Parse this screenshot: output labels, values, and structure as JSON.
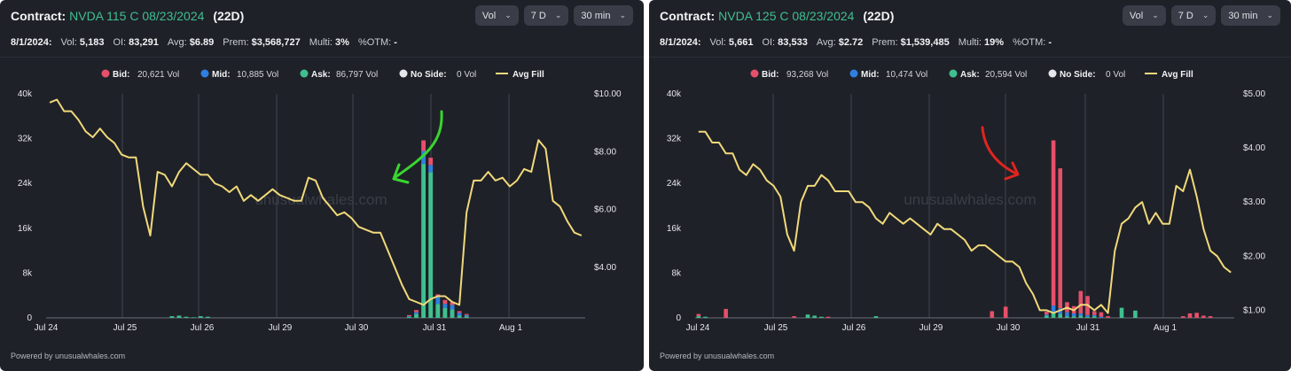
{
  "footer_text": "Powered by unusualwhales.com",
  "watermark": "unusualwhales.com",
  "colors": {
    "bid": "#e5506a",
    "mid": "#2f7fe0",
    "ask": "#3fbf8f",
    "no_side": "#e6e7ea",
    "avg_fill": "#f0d97a",
    "bg": "#1f2128",
    "grid": "#2c2f38"
  },
  "panels": [
    {
      "title_prefix": "Contract:",
      "contract": "NVDA 115 C 08/23/2024",
      "days": "(22D)",
      "controls": [
        {
          "label": "Vol",
          "icon": "chevron-down-icon"
        },
        {
          "label": "7 D",
          "icon": "chevron-down-icon"
        },
        {
          "label": "30 min",
          "icon": "chevron-down-icon"
        }
      ],
      "stats": {
        "date": "8/1/2024:",
        "vol_label": "Vol:",
        "vol": "5,183",
        "oi_label": "OI:",
        "oi": "83,291",
        "avg_label": "Avg:",
        "avg": "$6.89",
        "prem_label": "Prem:",
        "prem": "$3,568,727",
        "multi_label": "Multi:",
        "multi": "3%",
        "otm_label": "%OTM:",
        "otm": "-"
      },
      "annotation": {
        "type": "arrow",
        "color": "#39d62f"
      },
      "chart_data": {
        "type": "bar+line",
        "legend": [
          {
            "key": "bid",
            "label": "Bid:",
            "value": "20,621 Vol"
          },
          {
            "key": "mid",
            "label": "Mid:",
            "value": "10,885 Vol"
          },
          {
            "key": "ask",
            "label": "Ask:",
            "value": "86,797 Vol"
          },
          {
            "key": "no_side",
            "label": "No Side:",
            "value": "0 Vol"
          },
          {
            "key": "avg_fill",
            "label": "Avg Fill",
            "value": ""
          }
        ],
        "x_ticks": [
          "Jul 24",
          "Jul 25",
          "Jul 26",
          "Jul 29",
          "Jul 30",
          "Jul 31",
          "Aug 1"
        ],
        "y_left_ticks": [
          "0",
          "8k",
          "16k",
          "24k",
          "32k",
          "40k"
        ],
        "y_left_lim": [
          0,
          40000
        ],
        "y_right_ticks": [
          "$4.00",
          "$6.00",
          "$8.00",
          "$10.00"
        ],
        "y_right_lim": [
          2.25,
          10.0
        ],
        "avg_fill": [
          9.7,
          9.8,
          9.4,
          9.4,
          9.1,
          8.7,
          8.5,
          8.8,
          8.5,
          8.3,
          7.9,
          7.8,
          7.8,
          6.1,
          5.1,
          7.3,
          7.2,
          6.8,
          7.3,
          7.6,
          7.4,
          7.2,
          7.2,
          6.9,
          6.8,
          6.6,
          6.8,
          6.3,
          6.5,
          6.3,
          6.5,
          6.7,
          6.5,
          6.4,
          6.3,
          6.3,
          7.1,
          7.0,
          6.4,
          6.1,
          5.8,
          5.9,
          5.7,
          5.4,
          5.3,
          5.2,
          5.2,
          4.6,
          4.0,
          3.4,
          2.9,
          2.8,
          2.7,
          2.9,
          3.0,
          3.0,
          2.8,
          2.7,
          5.9,
          7.0,
          7.0,
          7.3,
          7.0,
          7.1,
          6.8,
          7.0,
          7.4,
          7.3,
          8.4,
          8.1,
          6.3,
          6.1,
          5.6,
          5.2,
          5.1
        ],
        "bars": {
          "ask": [
            0,
            0,
            0,
            0,
            0,
            0,
            0,
            0,
            0,
            0,
            0,
            0,
            0,
            0,
            0,
            0,
            0,
            300,
            400,
            200,
            100,
            300,
            200,
            0,
            0,
            0,
            0,
            0,
            0,
            0,
            0,
            0,
            0,
            0,
            0,
            0,
            0,
            0,
            0,
            0,
            0,
            0,
            0,
            0,
            0,
            0,
            0,
            0,
            0,
            0,
            200,
            700,
            27500,
            26000,
            2500,
            1800,
            1500,
            400,
            300,
            0,
            0,
            0,
            0,
            0,
            0,
            0,
            0,
            0,
            0,
            0,
            0,
            0,
            0,
            0,
            0
          ],
          "mid": [
            0,
            0,
            0,
            0,
            0,
            0,
            0,
            0,
            0,
            0,
            0,
            0,
            0,
            0,
            0,
            0,
            0,
            0,
            0,
            0,
            0,
            0,
            0,
            0,
            0,
            0,
            0,
            0,
            0,
            0,
            0,
            0,
            0,
            0,
            0,
            0,
            0,
            0,
            0,
            0,
            0,
            0,
            0,
            0,
            0,
            0,
            0,
            0,
            0,
            0,
            100,
            300,
            2300,
            1300,
            1200,
            700,
            800,
            500,
            200,
            0,
            0,
            0,
            0,
            0,
            0,
            0,
            0,
            0,
            0,
            0,
            0,
            0,
            0,
            0,
            0
          ],
          "bid": [
            0,
            0,
            0,
            0,
            0,
            0,
            0,
            0,
            0,
            0,
            0,
            0,
            0,
            0,
            0,
            0,
            0,
            0,
            0,
            0,
            0,
            0,
            0,
            0,
            0,
            0,
            0,
            0,
            0,
            0,
            0,
            0,
            0,
            0,
            0,
            0,
            0,
            0,
            0,
            0,
            0,
            0,
            0,
            0,
            0,
            0,
            0,
            0,
            0,
            0,
            200,
            400,
            1900,
            1300,
            500,
            700,
            500,
            300,
            200,
            0,
            0,
            0,
            0,
            0,
            0,
            0,
            0,
            0,
            0,
            0,
            0,
            0,
            0,
            0,
            0
          ]
        }
      }
    },
    {
      "title_prefix": "Contract:",
      "contract": "NVDA 125 C 08/23/2024",
      "days": "(22D)",
      "controls": [
        {
          "label": "Vol",
          "icon": "chevron-down-icon"
        },
        {
          "label": "7 D",
          "icon": "chevron-down-icon"
        },
        {
          "label": "30 min",
          "icon": "chevron-down-icon"
        }
      ],
      "stats": {
        "date": "8/1/2024:",
        "vol_label": "Vol:",
        "vol": "5,661",
        "oi_label": "OI:",
        "oi": "83,533",
        "avg_label": "Avg:",
        "avg": "$2.72",
        "prem_label": "Prem:",
        "prem": "$1,539,485",
        "multi_label": "Multi:",
        "multi": "19%",
        "otm_label": "%OTM:",
        "otm": "-"
      },
      "annotation": {
        "type": "arrow",
        "color": "#e0241f"
      },
      "chart_data": {
        "type": "bar+line",
        "legend": [
          {
            "key": "bid",
            "label": "Bid:",
            "value": "93,268 Vol"
          },
          {
            "key": "mid",
            "label": "Mid:",
            "value": "10,474 Vol"
          },
          {
            "key": "ask",
            "label": "Ask:",
            "value": "20,594 Vol"
          },
          {
            "key": "no_side",
            "label": "No Side:",
            "value": "0 Vol"
          },
          {
            "key": "avg_fill",
            "label": "Avg Fill",
            "value": ""
          }
        ],
        "x_ticks": [
          "Jul 24",
          "Jul 25",
          "Jul 26",
          "Jul 29",
          "Jul 30",
          "Jul 31",
          "Aug 1"
        ],
        "y_left_ticks": [
          "0",
          "8k",
          "16k",
          "24k",
          "32k",
          "40k"
        ],
        "y_left_lim": [
          0,
          40000
        ],
        "y_right_ticks": [
          "$1.00",
          "$2.00",
          "$3.00",
          "$4.00",
          "$5.00"
        ],
        "y_right_lim": [
          0.86,
          5.0
        ],
        "avg_fill": [
          4.3,
          4.3,
          4.1,
          4.1,
          3.9,
          3.9,
          3.6,
          3.5,
          3.7,
          3.6,
          3.4,
          3.3,
          3.1,
          2.4,
          2.1,
          3.0,
          3.3,
          3.3,
          3.5,
          3.4,
          3.2,
          3.2,
          3.2,
          3.0,
          3.0,
          2.9,
          2.7,
          2.6,
          2.8,
          2.7,
          2.6,
          2.7,
          2.6,
          2.5,
          2.4,
          2.6,
          2.5,
          2.5,
          2.4,
          2.3,
          2.1,
          2.2,
          2.2,
          2.1,
          2.0,
          1.9,
          1.9,
          1.8,
          1.5,
          1.3,
          1.0,
          1.0,
          0.95,
          1.0,
          1.05,
          1.0,
          1.1,
          1.1,
          1.0,
          1.1,
          0.95,
          2.1,
          2.6,
          2.7,
          2.9,
          3.0,
          2.6,
          2.8,
          2.6,
          2.6,
          3.3,
          3.2,
          3.6,
          3.1,
          2.5,
          2.1,
          2.0,
          1.8,
          1.7
        ],
        "bars": {
          "bid": [
            400,
            0,
            0,
            0,
            1600,
            0,
            0,
            0,
            0,
            0,
            0,
            0,
            0,
            0,
            300,
            0,
            0,
            0,
            0,
            200,
            0,
            0,
            0,
            0,
            0,
            0,
            0,
            0,
            0,
            0,
            0,
            0,
            0,
            0,
            0,
            0,
            0,
            0,
            0,
            0,
            0,
            0,
            0,
            1200,
            0,
            2000,
            0,
            0,
            0,
            0,
            0,
            500,
            29500,
            25000,
            1800,
            1300,
            4000,
            3400,
            700,
            800,
            300,
            0,
            0,
            0,
            0,
            0,
            0,
            0,
            0,
            0,
            0,
            300,
            800,
            900,
            400,
            300,
            0,
            0,
            0
          ],
          "mid": [
            0,
            0,
            0,
            0,
            0,
            0,
            0,
            0,
            0,
            0,
            0,
            0,
            0,
            0,
            0,
            0,
            0,
            0,
            0,
            0,
            0,
            0,
            0,
            0,
            0,
            0,
            0,
            0,
            0,
            0,
            0,
            0,
            0,
            0,
            0,
            0,
            0,
            0,
            0,
            0,
            0,
            0,
            0,
            0,
            0,
            0,
            0,
            0,
            0,
            0,
            0,
            200,
            1300,
            1000,
            700,
            500,
            400,
            300,
            200,
            200,
            0,
            0,
            0,
            0,
            0,
            0,
            0,
            0,
            0,
            0,
            0,
            0,
            0,
            0,
            0,
            0,
            0,
            0,
            0
          ],
          "ask": [
            300,
            200,
            0,
            0,
            0,
            0,
            0,
            0,
            0,
            0,
            0,
            0,
            0,
            0,
            0,
            0,
            600,
            400,
            200,
            0,
            0,
            0,
            0,
            0,
            0,
            0,
            300,
            0,
            0,
            0,
            0,
            0,
            0,
            0,
            0,
            0,
            0,
            0,
            0,
            0,
            0,
            0,
            0,
            0,
            0,
            0,
            0,
            0,
            0,
            0,
            0,
            400,
            900,
            700,
            300,
            300,
            400,
            200,
            300,
            0,
            0,
            0,
            1800,
            0,
            1300,
            0,
            0,
            0,
            0,
            0,
            0,
            0,
            0,
            0,
            0,
            0,
            0,
            0,
            0
          ]
        }
      }
    }
  ]
}
